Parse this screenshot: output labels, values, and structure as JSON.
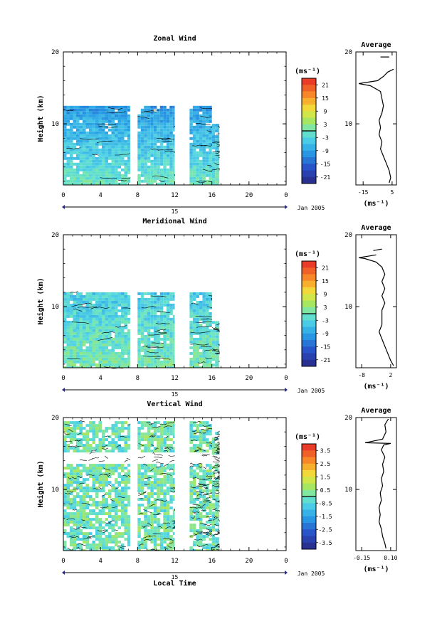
{
  "figure": {
    "xlabel": "Local Time",
    "date_label": "Jan 2005",
    "day_label": "15"
  },
  "chart_data": [
    {
      "type": "heatmap",
      "title": "Zonal Wind",
      "ylabel": "Height (km)",
      "x_ticks": [
        "0",
        "4",
        "8",
        "12",
        "16",
        "20",
        "0"
      ],
      "y_ticks": [
        "10",
        "20"
      ],
      "xlim": [
        0,
        24
      ],
      "ylim": [
        1.5,
        20
      ],
      "coverage": [
        [
          0,
          7.2,
          12.5
        ],
        [
          8,
          12,
          12.5
        ],
        [
          13.6,
          16,
          12.5
        ],
        [
          16,
          16.8,
          10
        ]
      ],
      "colorbar": {
        "unit": "(ms⁻¹)",
        "ticks": [
          "21",
          "15",
          "9",
          "3",
          "-3",
          "-9",
          "-15",
          "-21"
        ],
        "values": [
          21,
          15,
          9,
          3,
          -3,
          -9,
          -15,
          -21
        ],
        "range": [
          -24,
          24
        ]
      },
      "average": {
        "title": "Average",
        "xlabel": "(ms⁻¹)",
        "x_ticks": [
          "-15",
          "5"
        ],
        "y_ticks": [
          "10",
          "20"
        ],
        "xlim": [
          -20,
          8
        ],
        "profile": [
          [
            3,
            1.8
          ],
          [
            4,
            2.5
          ],
          [
            3,
            3.5
          ],
          [
            1,
            4.5
          ],
          [
            -1,
            5.5
          ],
          [
            -3,
            6.5
          ],
          [
            -2,
            7.5
          ],
          [
            -4,
            8.5
          ],
          [
            -3,
            9.5
          ],
          [
            -4,
            10.5
          ],
          [
            -2,
            11.5
          ],
          [
            -1,
            12.5
          ],
          [
            -2,
            13.5
          ],
          [
            -3,
            14.5
          ],
          [
            -10,
            15.3
          ],
          [
            -18,
            15.6
          ],
          [
            -5,
            16
          ],
          [
            -1,
            16.6
          ],
          [
            2,
            17.2
          ],
          [
            6,
            17.6
          ]
        ],
        "profile_upper": [
          [
            -3,
            19.3
          ],
          [
            3,
            19.3
          ]
        ]
      }
    },
    {
      "type": "heatmap",
      "title": "Meridional Wind",
      "ylabel": "Height (km)",
      "x_ticks": [
        "0",
        "4",
        "8",
        "12",
        "16",
        "20",
        "0"
      ],
      "y_ticks": [
        "10",
        "20"
      ],
      "xlim": [
        0,
        24
      ],
      "ylim": [
        1.5,
        20
      ],
      "coverage": [
        [
          0,
          7.2,
          12
        ],
        [
          8,
          12,
          12
        ],
        [
          13.6,
          16,
          12
        ],
        [
          16,
          16.8,
          8
        ]
      ],
      "colorbar": {
        "unit": "(ms⁻¹)",
        "ticks": [
          "21",
          "15",
          "9",
          "3",
          "-3",
          "-9",
          "-15",
          "-21"
        ],
        "values": [
          21,
          15,
          9,
          3,
          -3,
          -9,
          -15,
          -21
        ],
        "range": [
          -24,
          24
        ]
      },
      "average": {
        "title": "Average",
        "xlabel": "(ms⁻¹)",
        "x_ticks": [
          "-8",
          "2"
        ],
        "y_ticks": [
          "10",
          "20"
        ],
        "xlim": [
          -10,
          4
        ],
        "profile": [
          [
            3,
            1.8
          ],
          [
            2,
            2.5
          ],
          [
            1,
            3.5
          ],
          [
            0,
            4.5
          ],
          [
            -1,
            5.5
          ],
          [
            -2,
            6.5
          ],
          [
            -1,
            7.5
          ],
          [
            -1,
            8.5
          ],
          [
            -1,
            9.5
          ],
          [
            0,
            10.5
          ],
          [
            -1,
            11.5
          ],
          [
            0,
            12.5
          ],
          [
            -1,
            13.5
          ],
          [
            0,
            14.5
          ],
          [
            -1,
            15.5
          ],
          [
            -3,
            16.2
          ],
          [
            -7,
            16.7
          ],
          [
            -9,
            16.8
          ],
          [
            -6,
            17
          ],
          [
            -3,
            17.2
          ]
        ],
        "profile_upper": [
          [
            -4,
            17.8
          ],
          [
            -1,
            18
          ]
        ]
      }
    },
    {
      "type": "heatmap",
      "title": "Vertical Wind",
      "ylabel": "Height (km)",
      "x_ticks": [
        "0",
        "4",
        "8",
        "12",
        "16",
        "20",
        "0"
      ],
      "y_ticks": [
        "10",
        "20"
      ],
      "xlim": [
        0,
        24
      ],
      "ylim": [
        1.5,
        20
      ],
      "coverage": [
        [
          0,
          7.2,
          19.5
        ],
        [
          8,
          12,
          19.5
        ],
        [
          13.6,
          16,
          19.5
        ],
        [
          16,
          16.8,
          18
        ]
      ],
      "colorbar": {
        "unit": "(ms⁻¹)",
        "ticks": [
          "3.5",
          "2.5",
          "1.5",
          "0.5",
          "-0.5",
          "-1.5",
          "-2.5",
          "-3.5"
        ],
        "values": [
          3.5,
          2.5,
          1.5,
          0.5,
          -0.5,
          -1.5,
          -2.5,
          -3.5
        ],
        "range": [
          -4,
          4
        ]
      },
      "average": {
        "title": "Average",
        "xlabel": "(ms⁻¹)",
        "x_ticks": [
          "-0.15",
          "0.10"
        ],
        "y_ticks": [
          "10",
          "20"
        ],
        "xlim": [
          -0.2,
          0.15
        ],
        "profile": [
          [
            0.06,
            1.8
          ],
          [
            0.05,
            2.5
          ],
          [
            0.03,
            3.5
          ],
          [
            0.02,
            4.5
          ],
          [
            0.0,
            5.5
          ],
          [
            0.01,
            6.5
          ],
          [
            0.0,
            7.5
          ],
          [
            0.02,
            8.5
          ],
          [
            0.01,
            9.5
          ],
          [
            0.03,
            10.5
          ],
          [
            0.02,
            11.5
          ],
          [
            0.04,
            12.5
          ],
          [
            0.03,
            13.5
          ],
          [
            0.05,
            14.5
          ],
          [
            0.02,
            15.5
          ],
          [
            0.04,
            16.2
          ],
          [
            0.1,
            16.4
          ],
          [
            -0.12,
            16.5
          ],
          [
            0.03,
            17
          ],
          [
            0.06,
            18
          ],
          [
            0.05,
            19
          ],
          [
            0.08,
            19.8
          ]
        ],
        "profile_upper": []
      }
    }
  ]
}
